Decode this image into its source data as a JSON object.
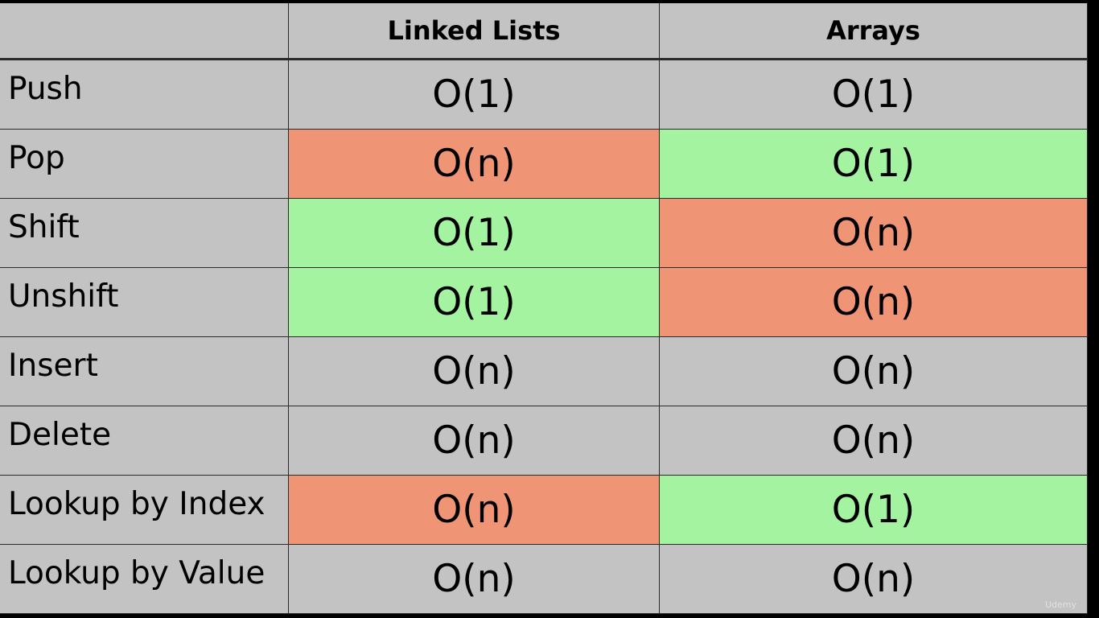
{
  "table": {
    "headers": [
      "",
      "Linked Lists",
      "Arrays"
    ],
    "rows": [
      {
        "operation": "Push",
        "linked_list": "O(1)",
        "array": "O(1)",
        "linked_list_status": "neutral",
        "array_status": "neutral"
      },
      {
        "operation": "Pop",
        "linked_list": "O(n)",
        "array": "O(1)",
        "linked_list_status": "bad",
        "array_status": "good"
      },
      {
        "operation": "Shift",
        "linked_list": "O(1)",
        "array": "O(n)",
        "linked_list_status": "good",
        "array_status": "bad"
      },
      {
        "operation": "Unshift",
        "linked_list": "O(1)",
        "array": "O(n)",
        "linked_list_status": "good",
        "array_status": "bad"
      },
      {
        "operation": "Insert",
        "linked_list": "O(n)",
        "array": "O(n)",
        "linked_list_status": "neutral",
        "array_status": "neutral"
      },
      {
        "operation": "Delete",
        "linked_list": "O(n)",
        "array": "O(n)",
        "linked_list_status": "neutral",
        "array_status": "neutral"
      },
      {
        "operation": "Lookup by Index",
        "linked_list": "O(n)",
        "array": "O(1)",
        "linked_list_status": "bad",
        "array_status": "good"
      },
      {
        "operation": "Lookup by Value",
        "linked_list": "O(n)",
        "array": "O(n)",
        "linked_list_status": "neutral",
        "array_status": "neutral"
      }
    ]
  },
  "colors": {
    "good": "#a3f3a0",
    "bad": "#ef9474",
    "neutral": "#c3c3c3"
  },
  "watermark": "Udemy"
}
